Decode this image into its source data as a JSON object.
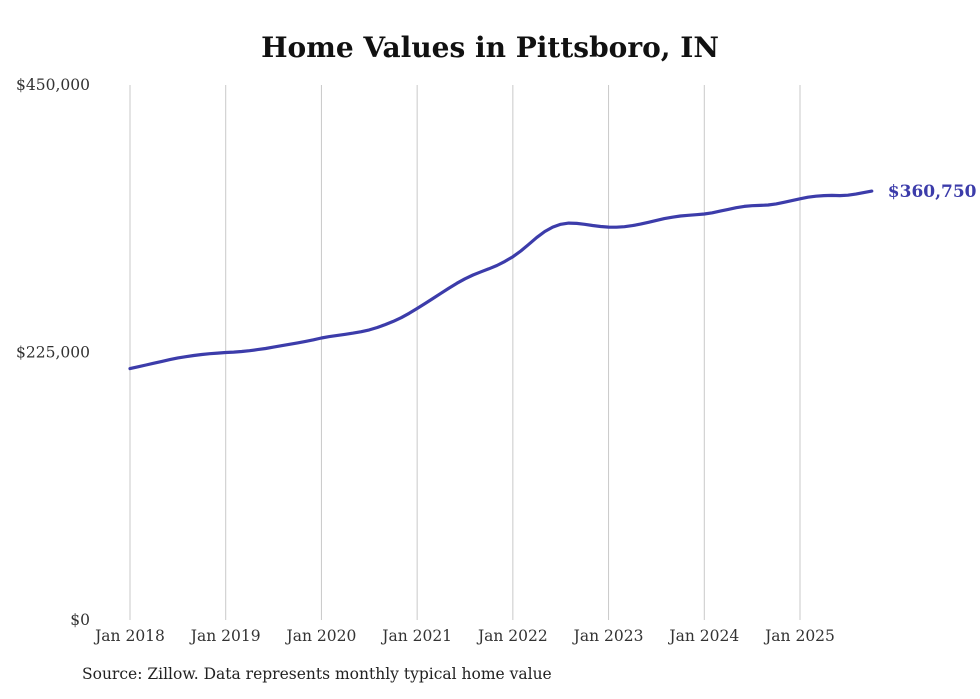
{
  "title": "Home Values in Pittsboro, IN",
  "source_note": "Source: Zillow. Data represents monthly typical home value",
  "end_label": "$360,750",
  "colors": {
    "line": "#3c3caa",
    "grid": "#c9c9c9",
    "axis_text": "#333333"
  },
  "chart_data": {
    "type": "line",
    "title": "Home Values in Pittsboro, IN",
    "ylim": [
      0,
      450000
    ],
    "grid": "vertical-only",
    "y_ticks": [
      {
        "label": "$0",
        "value": 0
      },
      {
        "label": "$225,000",
        "value": 225000
      },
      {
        "label": "$450,000",
        "value": 450000
      }
    ],
    "x_ticks": [
      {
        "label": "Jan 2018",
        "month": 0
      },
      {
        "label": "Jan 2019",
        "month": 12
      },
      {
        "label": "Jan 2020",
        "month": 24
      },
      {
        "label": "Jan 2021",
        "month": 36
      },
      {
        "label": "Jan 2022",
        "month": 48
      },
      {
        "label": "Jan 2023",
        "month": 60
      },
      {
        "label": "Jan 2024",
        "month": 72
      },
      {
        "label": "Jan 2025",
        "month": 84
      }
    ],
    "series": [
      {
        "name": "Monthly typical home value",
        "start": "Jan 2018",
        "frequency": "monthly",
        "values": [
          211500,
          213000,
          214500,
          216000,
          217500,
          219000,
          220500,
          221500,
          222500,
          223300,
          224000,
          224500,
          225000,
          225300,
          225800,
          226500,
          227400,
          228400,
          229500,
          230700,
          231900,
          233100,
          234300,
          235700,
          237200,
          238400,
          239400,
          240300,
          241300,
          242500,
          244000,
          246000,
          248500,
          251200,
          254300,
          258000,
          262000,
          266200,
          270500,
          274900,
          279200,
          283300,
          287000,
          290200,
          292900,
          295400,
          298200,
          301600,
          305600,
          310400,
          316000,
          321800,
          326800,
          330500,
          332800,
          333800,
          333600,
          332800,
          331800,
          331000,
          330500,
          330400,
          330800,
          331700,
          333000,
          334500,
          336100,
          337600,
          338800,
          339800,
          340400,
          340900,
          341500,
          342500,
          343900,
          345400,
          346800,
          347900,
          348500,
          348700,
          349100,
          350000,
          351300,
          352800,
          354300,
          355600,
          356500,
          357000,
          357100,
          357000,
          357300,
          358200,
          359500,
          360750
        ]
      }
    ],
    "last_value_label": "$360,750"
  }
}
